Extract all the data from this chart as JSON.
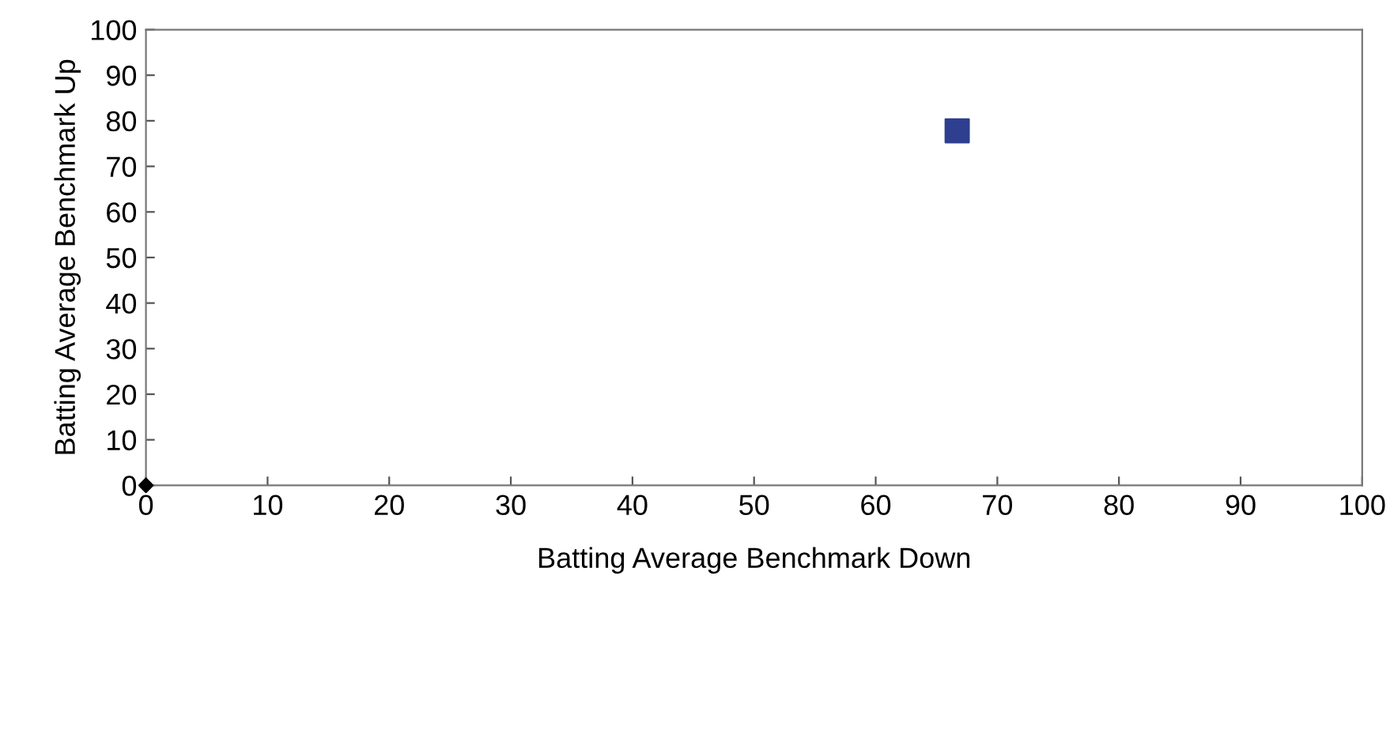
{
  "chart_data": {
    "type": "scatter",
    "xlabel": "Batting Average Benchmark Down",
    "ylabel": "Batting Average Benchmark Up",
    "series": [
      {
        "color": "#2e3f8f",
        "marker": "square",
        "x": [
          66.7
        ],
        "values": [
          77.8
        ]
      },
      {
        "color": "#000000",
        "marker": "diamond",
        "x": [
          0
        ],
        "values": [
          0
        ]
      }
    ],
    "xlim": [
      0,
      100
    ],
    "ylim": [
      0,
      100
    ],
    "xticks": [
      0,
      10,
      20,
      30,
      40,
      50,
      60,
      70,
      80,
      90,
      100
    ],
    "yticks": [
      0,
      10,
      20,
      30,
      40,
      50,
      60,
      70,
      80,
      90,
      100
    ],
    "grid": false
  }
}
